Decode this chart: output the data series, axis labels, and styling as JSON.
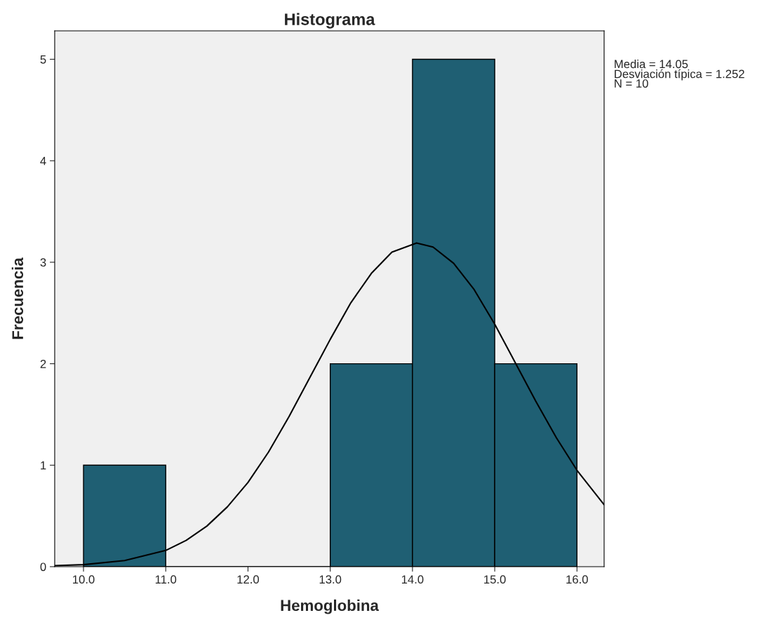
{
  "chart_data": {
    "type": "histogram",
    "title": "Histograma",
    "xlabel": "Hemoglobina",
    "ylabel": "Frecuencia",
    "bins": [
      10.0,
      11.0,
      12.0,
      13.0,
      14.0,
      15.0,
      16.0
    ],
    "values": [
      1,
      0,
      0,
      2,
      5,
      2
    ],
    "color": "#1f5f73",
    "series": [
      {
        "type": "line",
        "color": "#000000",
        "x": [
          9.65,
          10.0,
          10.5,
          11.0,
          11.25,
          11.5,
          11.75,
          12.0,
          12.25,
          12.5,
          12.75,
          13.0,
          13.25,
          13.5,
          13.75,
          14.05,
          14.25,
          14.5,
          14.75,
          15.0,
          15.25,
          15.5,
          15.75,
          16.0,
          16.33
        ],
        "values": [
          0.01,
          0.02,
          0.06,
          0.16,
          0.26,
          0.4,
          0.59,
          0.83,
          1.13,
          1.48,
          1.86,
          2.24,
          2.6,
          2.89,
          3.1,
          3.19,
          3.15,
          2.99,
          2.73,
          2.39,
          2.01,
          1.63,
          1.27,
          0.95,
          0.61
        ]
      }
    ],
    "xlim": [
      9.65,
      16.33
    ],
    "xticks": [
      {
        "value": 10,
        "label": "10.0"
      },
      {
        "value": 11,
        "label": "11.0"
      },
      {
        "value": 12,
        "label": "12.0"
      },
      {
        "value": 13,
        "label": "13.0"
      },
      {
        "value": 14,
        "label": "14.0"
      },
      {
        "value": 15,
        "label": "15.0"
      },
      {
        "value": 16,
        "label": "16.0"
      }
    ],
    "ylim": [
      0,
      5.28
    ],
    "yticks": [
      0,
      1,
      2,
      3,
      4,
      5
    ],
    "grid": false,
    "annotations": [
      "Media = 14.05",
      "Desviación típica = 1.252",
      "N = 10"
    ]
  }
}
